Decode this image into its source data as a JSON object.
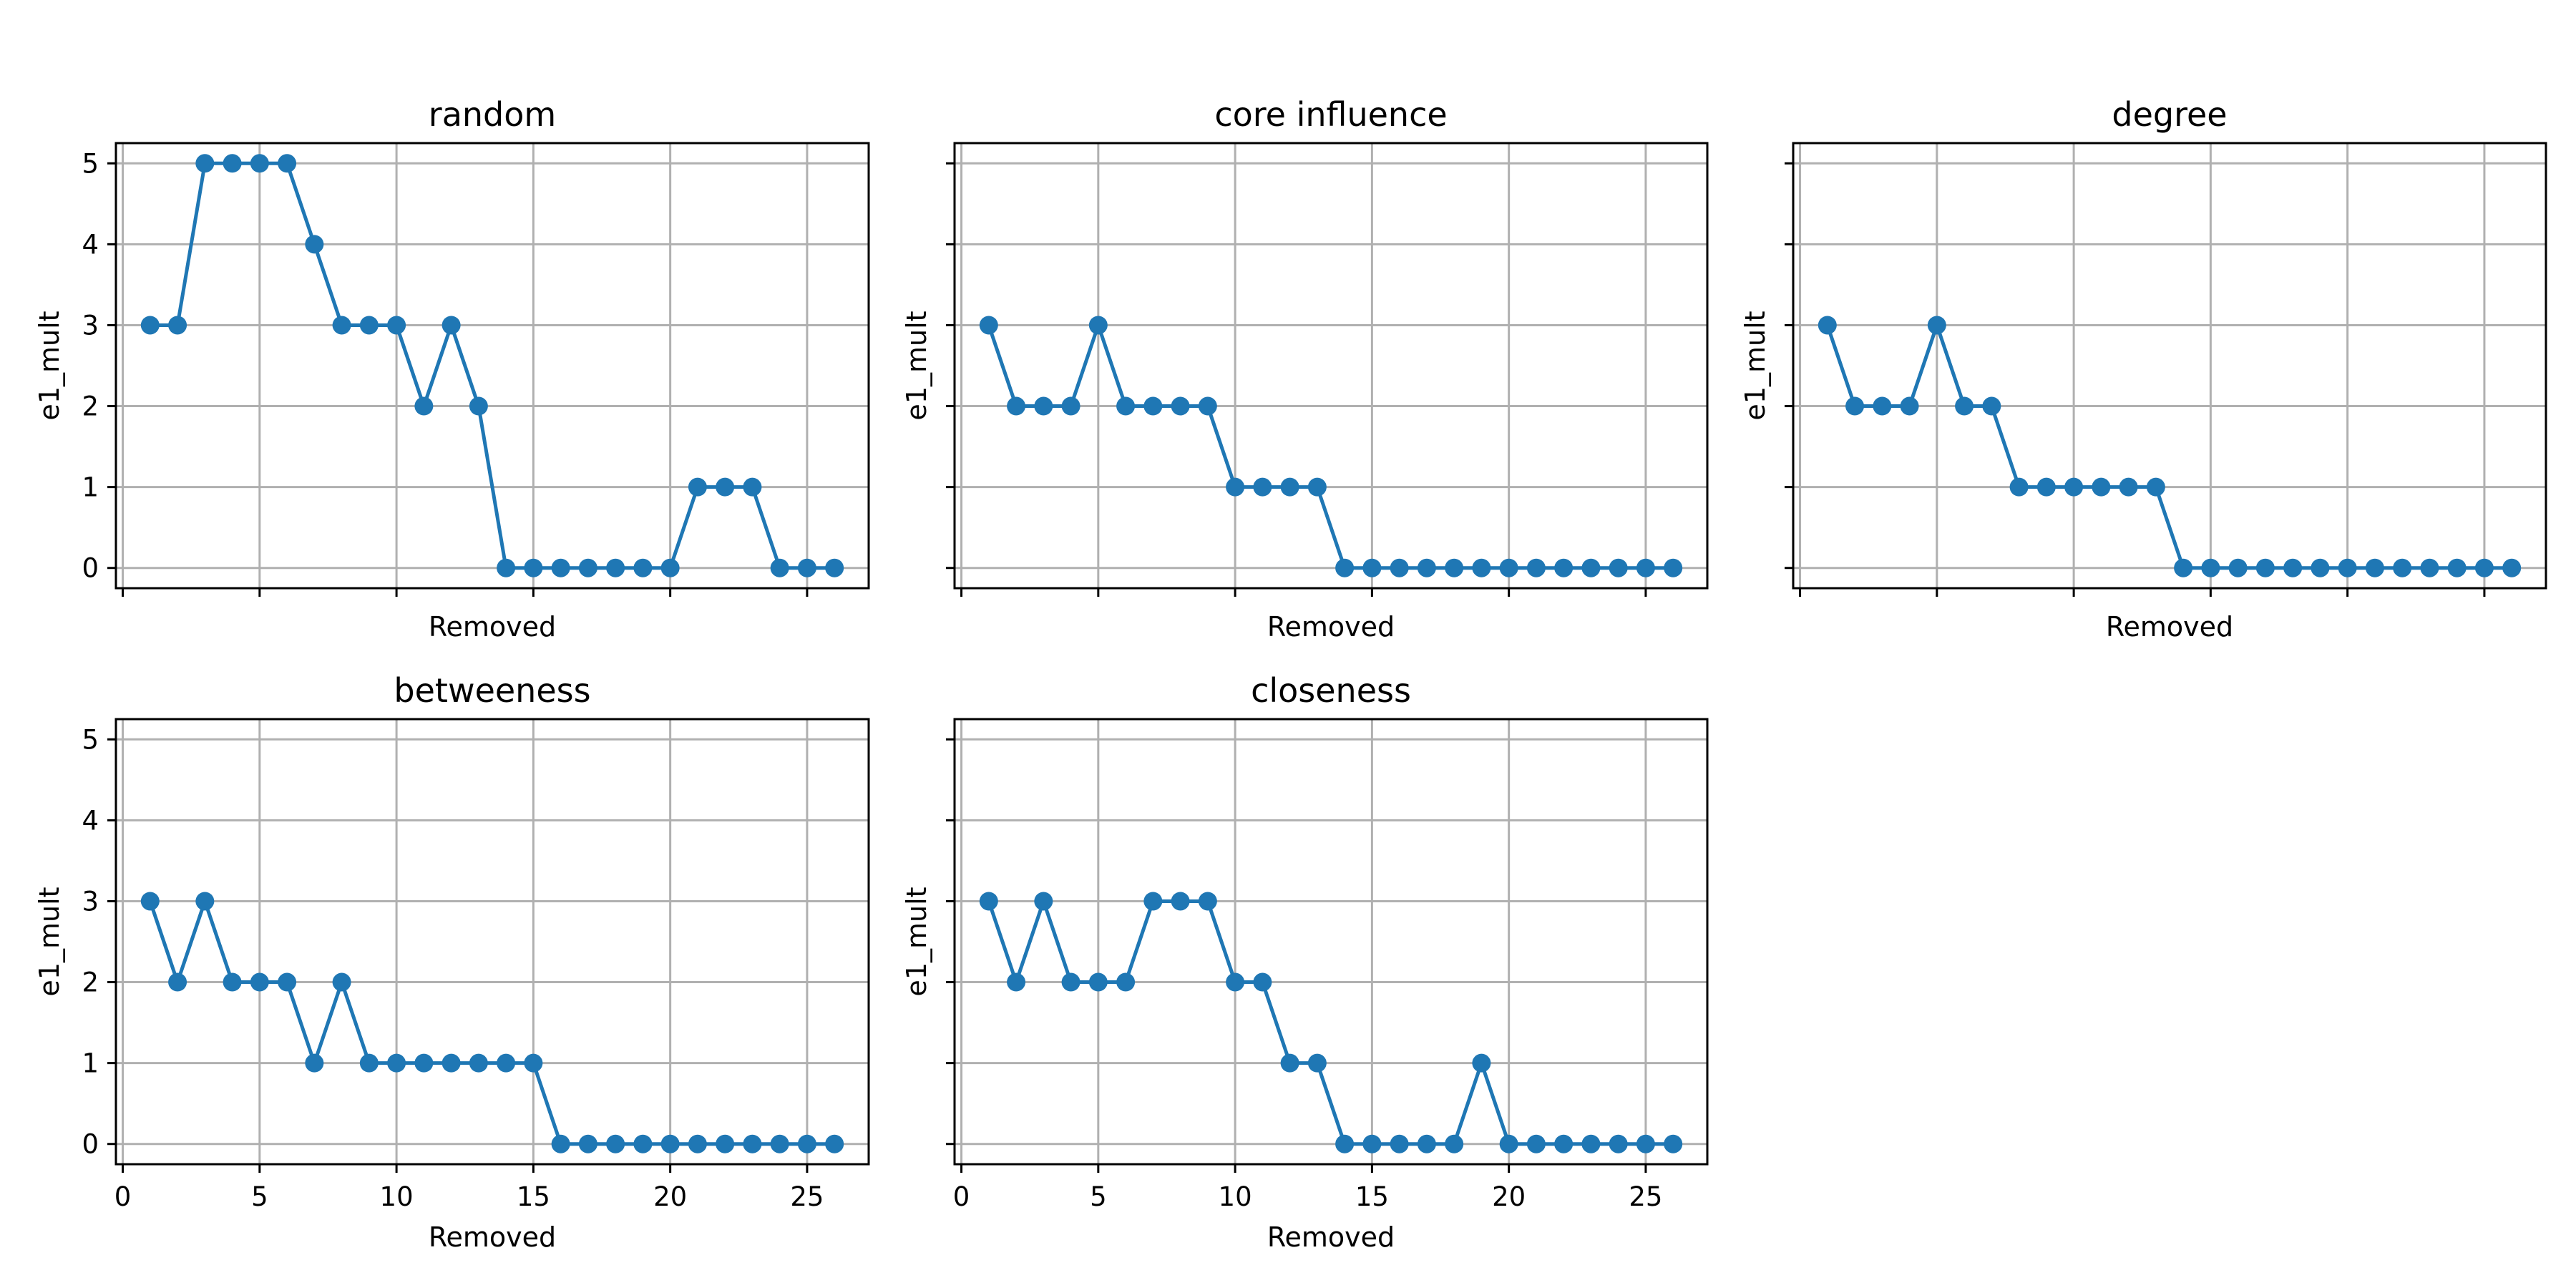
{
  "chart_data": [
    {
      "type": "line",
      "title": "random",
      "xlabel": "Removed",
      "ylabel": "e1_mult",
      "xlim": [
        -0.25,
        27.25
      ],
      "ylim": [
        -0.25,
        5.25
      ],
      "xticks": [
        0,
        5,
        10,
        15,
        20,
        25
      ],
      "yticks": [
        0,
        1,
        2,
        3,
        4,
        5
      ],
      "show_xtick_labels": false,
      "show_ytick_labels": true,
      "grid": true,
      "color": "#1f77b4",
      "marker": "circle",
      "x": [
        1,
        2,
        3,
        4,
        5,
        6,
        7,
        8,
        9,
        10,
        11,
        12,
        13,
        14,
        15,
        16,
        17,
        18,
        19,
        20,
        21,
        22,
        23,
        24,
        25,
        26
      ],
      "y": [
        3,
        3,
        5,
        5,
        5,
        5,
        4,
        3,
        3,
        3,
        2,
        3,
        2,
        0,
        0,
        0,
        0,
        0,
        0,
        0,
        1,
        1,
        1,
        0,
        0,
        0
      ]
    },
    {
      "type": "line",
      "title": "core influence",
      "xlabel": "Removed",
      "ylabel": "e1_mult",
      "xlim": [
        -0.25,
        27.25
      ],
      "ylim": [
        -0.25,
        5.25
      ],
      "xticks": [
        0,
        5,
        10,
        15,
        20,
        25
      ],
      "yticks": [
        0,
        1,
        2,
        3,
        4,
        5
      ],
      "show_xtick_labels": false,
      "show_ytick_labels": false,
      "grid": true,
      "color": "#1f77b4",
      "marker": "circle",
      "x": [
        1,
        2,
        3,
        4,
        5,
        6,
        7,
        8,
        9,
        10,
        11,
        12,
        13,
        14,
        15,
        16,
        17,
        18,
        19,
        20,
        21,
        22,
        23,
        24,
        25,
        26
      ],
      "y": [
        3,
        2,
        2,
        2,
        3,
        2,
        2,
        2,
        2,
        1,
        1,
        1,
        1,
        0,
        0,
        0,
        0,
        0,
        0,
        0,
        0,
        0,
        0,
        0,
        0,
        0
      ]
    },
    {
      "type": "line",
      "title": "degree",
      "xlabel": "Removed",
      "ylabel": "e1_mult",
      "xlim": [
        -0.25,
        27.25
      ],
      "ylim": [
        -0.25,
        5.25
      ],
      "xticks": [
        0,
        5,
        10,
        15,
        20,
        25
      ],
      "yticks": [
        0,
        1,
        2,
        3,
        4,
        5
      ],
      "show_xtick_labels": false,
      "show_ytick_labels": false,
      "grid": true,
      "color": "#1f77b4",
      "marker": "circle",
      "x": [
        1,
        2,
        3,
        4,
        5,
        6,
        7,
        8,
        9,
        10,
        11,
        12,
        13,
        14,
        15,
        16,
        17,
        18,
        19,
        20,
        21,
        22,
        23,
        24,
        25,
        26
      ],
      "y": [
        3,
        2,
        2,
        2,
        3,
        2,
        2,
        1,
        1,
        1,
        1,
        1,
        1,
        0,
        0,
        0,
        0,
        0,
        0,
        0,
        0,
        0,
        0,
        0,
        0,
        0
      ]
    },
    {
      "type": "line",
      "title": "betweeness",
      "xlabel": "Removed",
      "ylabel": "e1_mult",
      "xlim": [
        -0.25,
        27.25
      ],
      "ylim": [
        -0.25,
        5.25
      ],
      "xticks": [
        0,
        5,
        10,
        15,
        20,
        25
      ],
      "yticks": [
        0,
        1,
        2,
        3,
        4,
        5
      ],
      "show_xtick_labels": true,
      "show_ytick_labels": true,
      "grid": true,
      "color": "#1f77b4",
      "marker": "circle",
      "x": [
        1,
        2,
        3,
        4,
        5,
        6,
        7,
        8,
        9,
        10,
        11,
        12,
        13,
        14,
        15,
        16,
        17,
        18,
        19,
        20,
        21,
        22,
        23,
        24,
        25,
        26
      ],
      "y": [
        3,
        2,
        3,
        2,
        2,
        2,
        1,
        2,
        1,
        1,
        1,
        1,
        1,
        1,
        1,
        0,
        0,
        0,
        0,
        0,
        0,
        0,
        0,
        0,
        0,
        0
      ]
    },
    {
      "type": "line",
      "title": "closeness",
      "xlabel": "Removed",
      "ylabel": "e1_mult",
      "xlim": [
        -0.25,
        27.25
      ],
      "ylim": [
        -0.25,
        5.25
      ],
      "xticks": [
        0,
        5,
        10,
        15,
        20,
        25
      ],
      "yticks": [
        0,
        1,
        2,
        3,
        4,
        5
      ],
      "show_xtick_labels": true,
      "show_ytick_labels": false,
      "grid": true,
      "color": "#1f77b4",
      "marker": "circle",
      "x": [
        1,
        2,
        3,
        4,
        5,
        6,
        7,
        8,
        9,
        10,
        11,
        12,
        13,
        14,
        15,
        16,
        17,
        18,
        19,
        20,
        21,
        22,
        23,
        24,
        25,
        26
      ],
      "y": [
        3,
        2,
        3,
        2,
        2,
        2,
        3,
        3,
        3,
        2,
        2,
        1,
        1,
        0,
        0,
        0,
        0,
        0,
        1,
        0,
        0,
        0,
        0,
        0,
        0,
        0
      ]
    }
  ]
}
